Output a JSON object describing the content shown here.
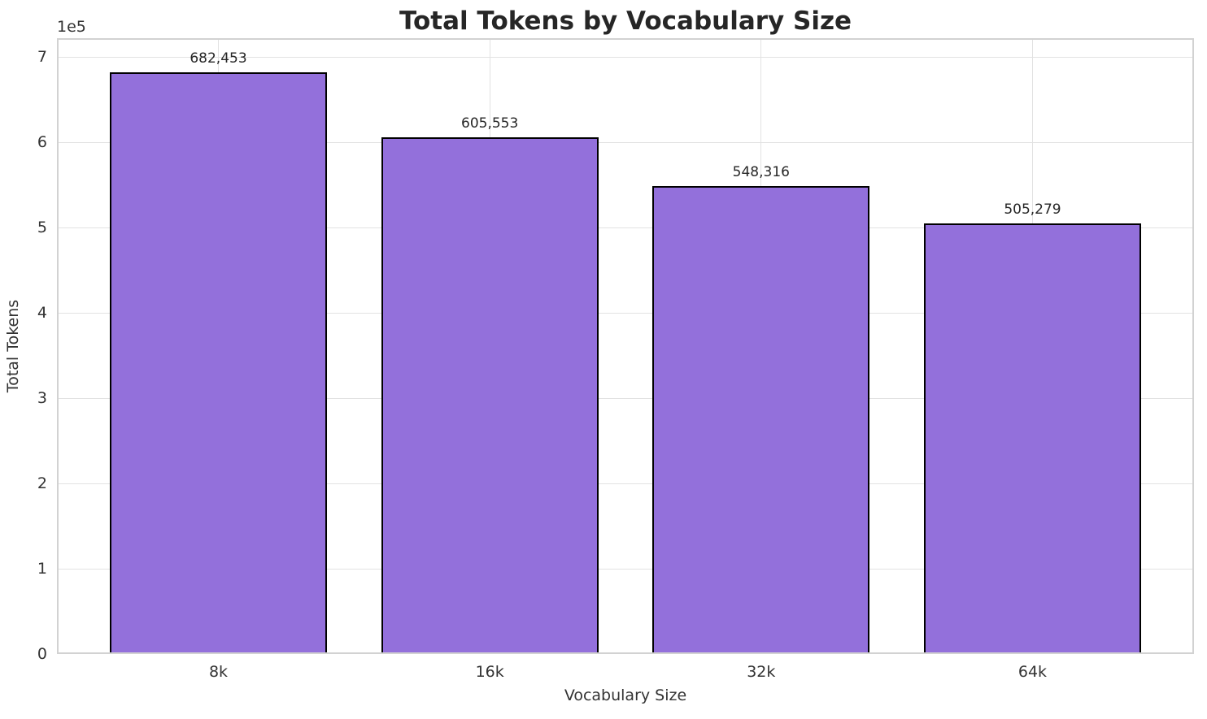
{
  "chart_data": {
    "type": "bar",
    "title": "Total Tokens by Vocabulary Size",
    "xlabel": "Vocabulary Size",
    "ylabel": "Total Tokens",
    "y_axis_offset_label": "1e5",
    "categories": [
      "8k",
      "16k",
      "32k",
      "64k"
    ],
    "values": [
      682453,
      605553,
      548316,
      505279
    ],
    "value_labels": [
      "682,453",
      "605,553",
      "548,316",
      "505,279"
    ],
    "ytick_values": [
      0,
      100000,
      200000,
      300000,
      400000,
      500000,
      600000,
      700000
    ],
    "ytick_labels": [
      "0",
      "1",
      "2",
      "3",
      "4",
      "5",
      "6",
      "7"
    ],
    "ylim": [
      0,
      722000
    ],
    "grid": true,
    "legend_position": "none",
    "colors": {
      "bar_fill": "#9370DB",
      "bar_edge": "#000000",
      "grid_line": "#e2e2e2",
      "spine": "#d2d2d2",
      "title_text": "#262626",
      "tick_text": "#333333",
      "background": "#ffffff"
    }
  }
}
